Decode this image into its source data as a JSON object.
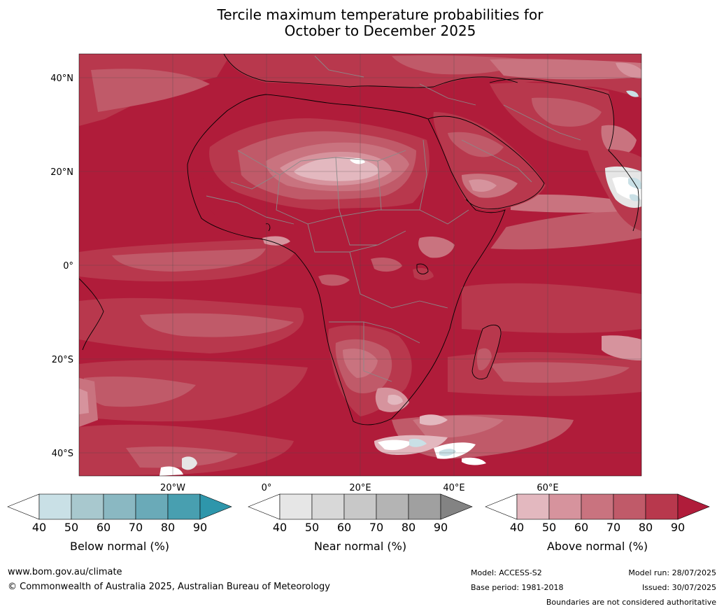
{
  "title": {
    "line1": "Tercile maximum temperature probabilities for",
    "line2": "October to December 2025"
  },
  "map": {
    "lat_labels": [
      "40°N",
      "20°N",
      "0°",
      "20°S",
      "40°S"
    ],
    "lon_labels": [
      "20°W",
      "0°",
      "20°E",
      "40°E",
      "60°E"
    ]
  },
  "colorbars": [
    {
      "label": "Below normal (%)",
      "ticks": [
        "40",
        "50",
        "60",
        "70",
        "80",
        "90"
      ],
      "colors": [
        "#ffffff",
        "#c9e0e6",
        "#a8c8ce",
        "#8ab8c2",
        "#6aaab8",
        "#489fb0",
        "#2e96ab"
      ]
    },
    {
      "label": "Near normal (%)",
      "ticks": [
        "40",
        "50",
        "60",
        "70",
        "80",
        "90"
      ],
      "colors": [
        "#ffffff",
        "#e6e6e6",
        "#d8d8d8",
        "#c8c8c8",
        "#b4b4b4",
        "#a0a0a0",
        "#838383"
      ]
    },
    {
      "label": "Above normal (%)",
      "ticks": [
        "40",
        "50",
        "60",
        "70",
        "80",
        "90"
      ],
      "colors": [
        "#ffffff",
        "#e3b8bf",
        "#d6939d",
        "#c9737f",
        "#c05a69",
        "#b8384d",
        "#b01c3a"
      ]
    }
  ],
  "palette": {
    "dominant_red": "#b01c3a",
    "red_80": "#b8384d",
    "red_70": "#c05a69",
    "red_60": "#c9737f",
    "red_50": "#d6939d",
    "red_40": "#e3b8bf"
  },
  "footer": {
    "website": "www.bom.gov.au/climate",
    "copyright": "© Commonwealth of Australia 2025, Australian Bureau of Meteorology",
    "model": "Model: ACCESS-S2",
    "base_period": "Base period: 1981-2018",
    "model_run": "Model run: 28/07/2025",
    "issued": "Issued: 30/07/2025",
    "disclaimer": "Boundaries are not considered authoritative"
  }
}
